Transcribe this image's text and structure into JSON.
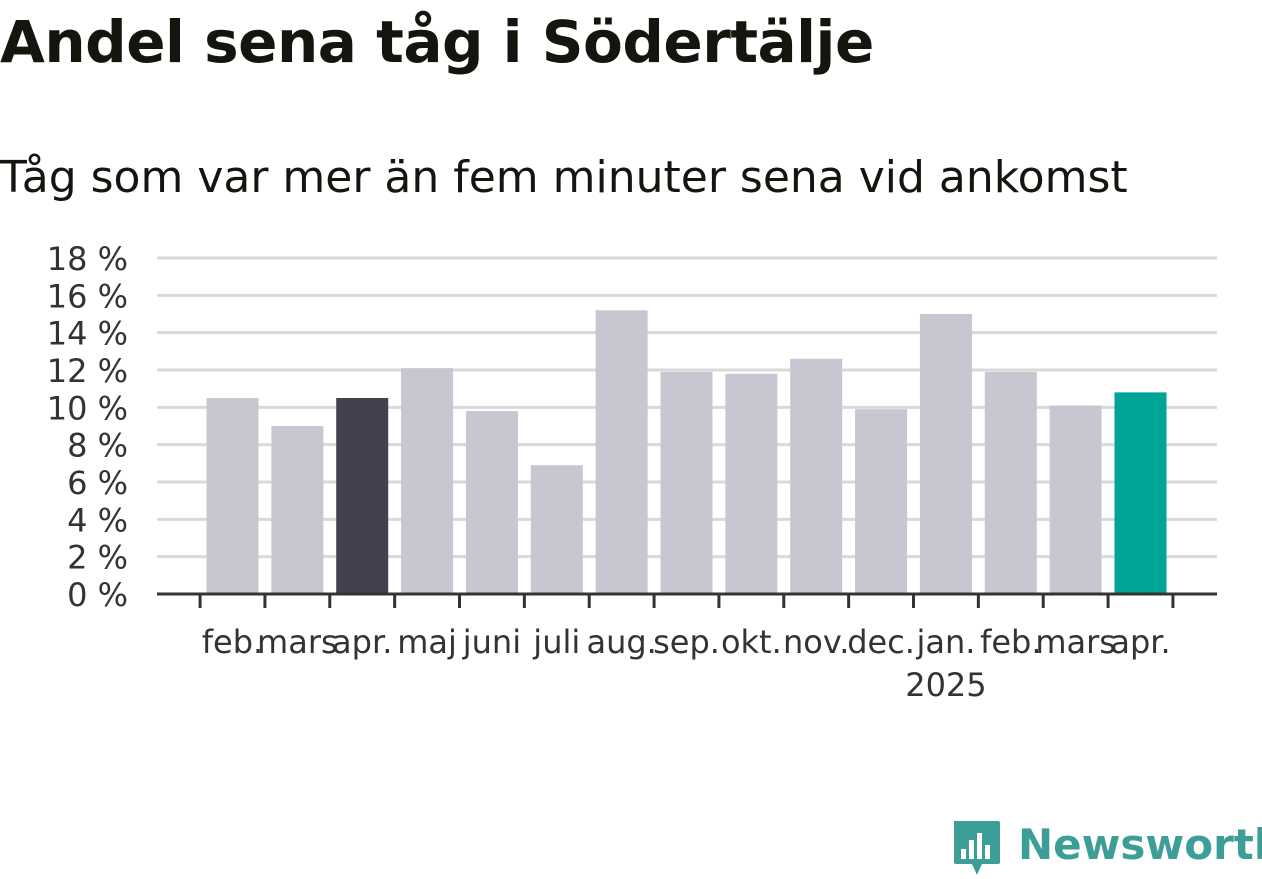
{
  "header": {
    "title": "Andel sena tåg i Södertälje",
    "subtitle": "Tåg som var mer än fem minuter sena vid ankomst"
  },
  "brand": {
    "name": "Newsworthy",
    "icon": "bar-chart-speech-bubble-icon",
    "color": "#3d9e98"
  },
  "colors": {
    "default_bar": "#c8c7d1",
    "last_year_bar": "#44414e",
    "current_bar": "#00a499",
    "grid": "#d9d9d9",
    "axis": "#333333"
  },
  "chart_data": {
    "type": "bar",
    "title": "Andel sena tåg i Södertälje",
    "subtitle": "Tåg som var mer än fem minuter sena vid ankomst",
    "categories": [
      "feb.",
      "mars",
      "apr.",
      "maj",
      "juni",
      "juli",
      "aug.",
      "sep.",
      "okt.",
      "nov.",
      "dec.",
      "jan.",
      "feb.",
      "mars",
      "apr."
    ],
    "year_labels": [
      {
        "index": 11,
        "label": "2025"
      }
    ],
    "values": [
      10.5,
      9.0,
      10.5,
      12.1,
      9.8,
      6.9,
      15.2,
      11.9,
      11.8,
      12.6,
      9.9,
      15.0,
      11.9,
      10.1,
      10.8
    ],
    "highlight": {
      "2": "#44414e",
      "14": "#00a499"
    },
    "ylim": [
      0,
      18
    ],
    "yticks": [
      0,
      2,
      4,
      6,
      8,
      10,
      12,
      14,
      16,
      18
    ],
    "ytick_labels": [
      "0 %",
      "2 %",
      "4 %",
      "6 %",
      "8 %",
      "10 %",
      "12 %",
      "14 %",
      "16 %",
      "18 %"
    ],
    "xlabel": "",
    "ylabel": "",
    "grid": true,
    "legend": "none"
  }
}
